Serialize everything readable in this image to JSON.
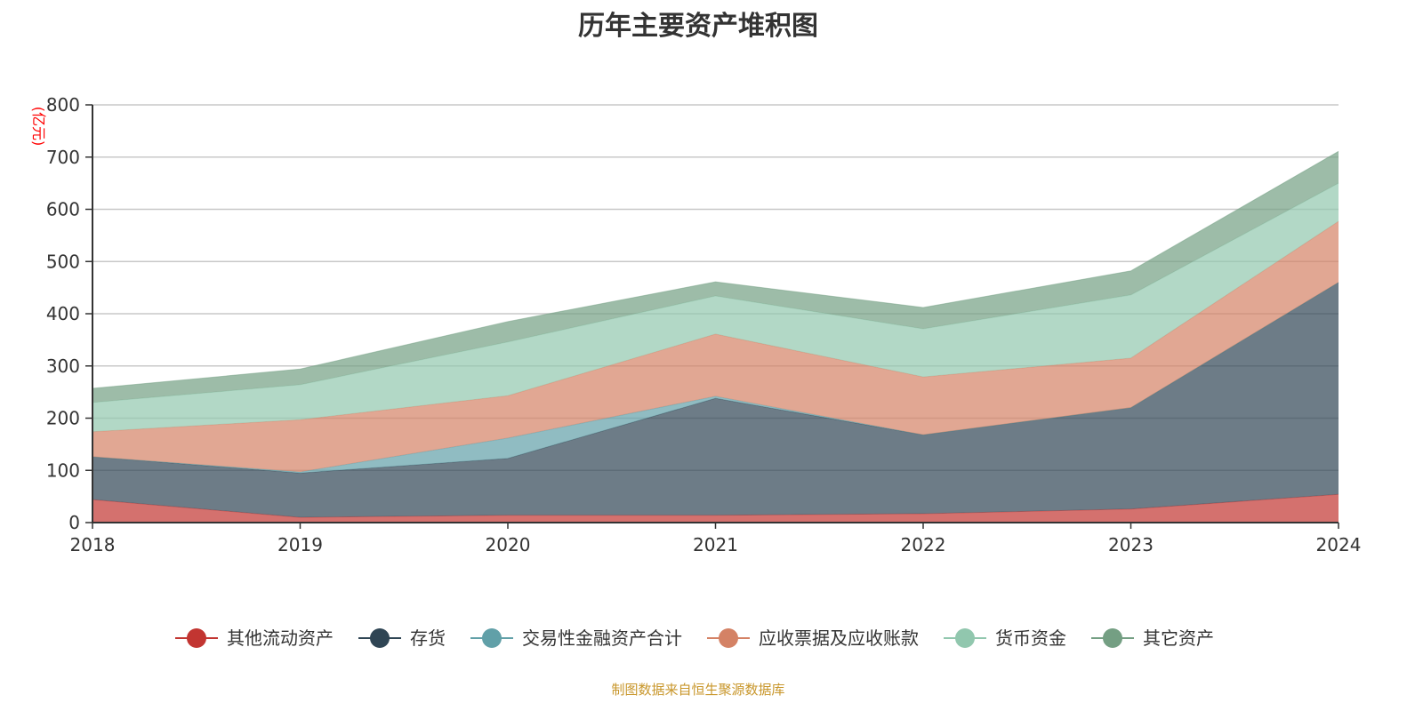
{
  "chart_data": {
    "type": "area",
    "stacked": true,
    "title": "历年主要资产堆积图",
    "ylabel": "(亿元)",
    "xlabel": "",
    "categories": [
      "2018",
      "2019",
      "2020",
      "2021",
      "2022",
      "2023",
      "2024"
    ],
    "ylim": [
      0,
      800
    ],
    "yticks": [
      0,
      100,
      200,
      300,
      400,
      500,
      600,
      700,
      800
    ],
    "grid": true,
    "legend_position": "bottom",
    "series": [
      {
        "name": "其他流动资产",
        "color": "#c23531",
        "values": [
          44,
          10,
          14,
          14,
          17,
          26,
          54
        ]
      },
      {
        "name": "存货",
        "color": "#2f4554",
        "values": [
          82,
          85,
          109,
          224,
          151,
          194,
          406
        ]
      },
      {
        "name": "交易性金融资产合计",
        "color": "#61a0a8",
        "values": [
          0,
          2,
          39,
          4,
          0,
          0,
          0
        ]
      },
      {
        "name": "应收票据及应收账款",
        "color": "#d48265",
        "values": [
          48,
          100,
          81,
          119,
          111,
          95,
          117
        ]
      },
      {
        "name": "货币资金",
        "color": "#91c7ae",
        "values": [
          56,
          67,
          103,
          73,
          92,
          121,
          73
        ]
      },
      {
        "name": "其它资产",
        "color": "#749f83",
        "values": [
          27,
          30,
          39,
          27,
          41,
          46,
          61
        ]
      }
    ]
  },
  "footer": {
    "source": "制图数据来自恒生聚源数据库"
  }
}
